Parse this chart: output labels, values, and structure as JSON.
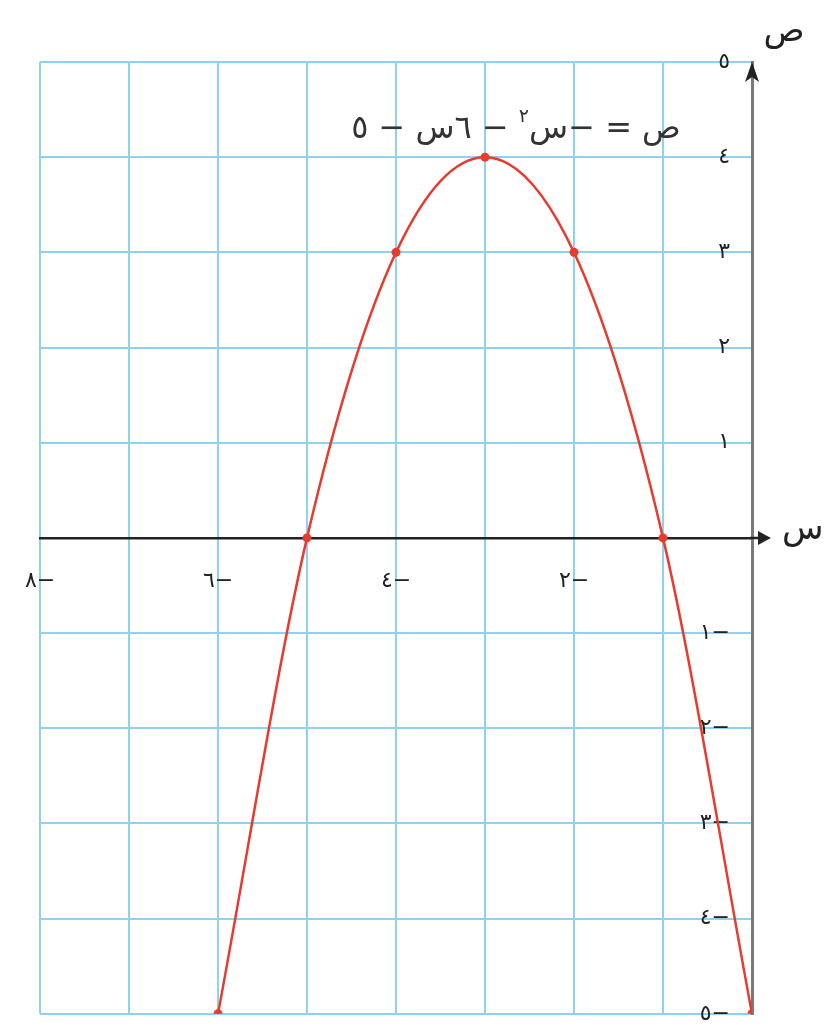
{
  "chart_data": {
    "type": "line",
    "xlabel": "س",
    "ylabel": "ص",
    "x": [
      -6,
      -5,
      -4,
      -3,
      -2,
      -1,
      0
    ],
    "series": [
      {
        "color": "#e63b2e",
        "values": [
          -5,
          0,
          3,
          4,
          3,
          0,
          -5
        ]
      }
    ],
    "xlim": [
      -8,
      0
    ],
    "ylim": [
      -5,
      5
    ],
    "xticks": [
      {
        "value": -8,
        "label": "−٨"
      },
      {
        "value": -7,
        "label": null
      },
      {
        "value": -6,
        "label": "−٦"
      },
      {
        "value": -5,
        "label": null
      },
      {
        "value": -4,
        "label": "−٤"
      },
      {
        "value": -3,
        "label": null
      },
      {
        "value": -2,
        "label": "−٢"
      },
      {
        "value": -1,
        "label": null
      },
      {
        "value": 0,
        "label": null
      }
    ],
    "yticks": [
      {
        "value": -5,
        "label": "−٥"
      },
      {
        "value": -4,
        "label": "−٤"
      },
      {
        "value": -3,
        "label": "−٣"
      },
      {
        "value": -2,
        "label": "−٢"
      },
      {
        "value": -1,
        "label": "−١"
      },
      {
        "value": 0,
        "label": null
      },
      {
        "value": 1,
        "label": "١"
      },
      {
        "value": 2,
        "label": "٢"
      },
      {
        "value": 3,
        "label": "٣"
      },
      {
        "value": 4,
        "label": "٤"
      },
      {
        "value": 5,
        "label": "٥"
      }
    ],
    "grid": true,
    "marker": "circle",
    "annotations": [
      "ص = −س$^{٢}$ − ٦س − ٥"
    ]
  }
}
